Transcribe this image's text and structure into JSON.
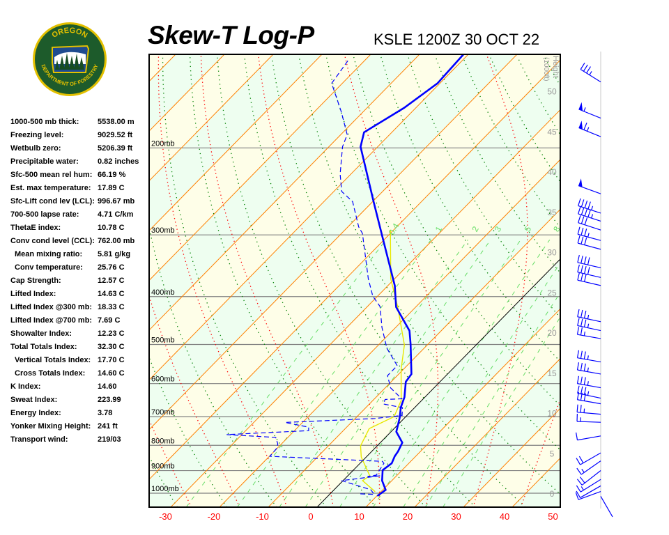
{
  "header": {
    "title": "Skew-T Log-P",
    "station": "KSLE 1200Z 30 OCT 22"
  },
  "logo": {
    "text_top": "OREGON",
    "text_bottom": "DEPARTMENT OF FORESTRY",
    "ring_color": "#e3c000",
    "field_color": "#1d5b2b"
  },
  "stats": [
    {
      "label": "1000-500 mb thick:",
      "value": "5538.00 m"
    },
    {
      "label": "Freezing level:",
      "value": "9029.52 ft"
    },
    {
      "label": "Wetbulb zero:",
      "value": "5206.39 ft"
    },
    {
      "label": "Precipitable water:",
      "value": "0.82 inches"
    },
    {
      "label": "Sfc-500 mean rel hum:",
      "value": "66.19 %"
    },
    {
      "label": "Est. max temperature:",
      "value": "17.89 C"
    },
    {
      "label": "Sfc-Lift cond lev (LCL):",
      "value": "996.67 mb"
    },
    {
      "label": "700-500 lapse rate:",
      "value": "4.71 C/km"
    },
    {
      "label": "ThetaE index:",
      "value": "10.78 C"
    },
    {
      "label": "Conv cond level (CCL):",
      "value": "762.00 mb"
    },
    {
      "label": "Mean mixing ratio:",
      "value": "5.81 g/kg",
      "indent": true
    },
    {
      "label": "Conv temperature:",
      "value": "25.76 C",
      "indent": true
    },
    {
      "label": "Cap Strength:",
      "value": "12.57 C"
    },
    {
      "label": "Lifted Index:",
      "value": "14.63 C"
    },
    {
      "label": "Lifted Index @300 mb:",
      "value": "18.33 C"
    },
    {
      "label": "Lifted Index @700 mb:",
      "value": "7.69 C"
    },
    {
      "label": "Showalter Index:",
      "value": "12.23 C"
    },
    {
      "label": "Total Totals Index:",
      "value": "32.30 C"
    },
    {
      "label": "Vertical Totals Index:",
      "value": "17.70 C",
      "indent": true
    },
    {
      "label": "Cross Totals Index:",
      "value": "14.60 C",
      "indent": true
    },
    {
      "label": "K Index:",
      "value": "14.60"
    },
    {
      "label": "Sweat Index:",
      "value": "223.99"
    },
    {
      "label": "Energy Index:",
      "value": "3.78"
    },
    {
      "label": "Yonker Mixing Height:",
      "value": "241 ft"
    },
    {
      "label": "Transport wind:",
      "value": "219/03"
    }
  ],
  "diagram": {
    "pressure_range_mb": [
      1067,
      129
    ],
    "isobars": [
      {
        "p": 1000,
        "label": "1000mb"
      },
      {
        "p": 900,
        "label": "900mb"
      },
      {
        "p": 800,
        "label": "800mb"
      },
      {
        "p": 700,
        "label": "700mb"
      },
      {
        "p": 600,
        "label": "600mb"
      },
      {
        "p": 500,
        "label": "500mb"
      },
      {
        "p": 400,
        "label": "400mb"
      },
      {
        "p": 300,
        "label": "300mb"
      },
      {
        "p": 200,
        "label": "200mb"
      }
    ],
    "temp_ticks": [
      "-30",
      "-20",
      "-10",
      "0",
      "10",
      "20",
      "30",
      "40",
      "50"
    ],
    "temp_tick_values": [
      -30,
      -20,
      -10,
      0,
      10,
      20,
      30,
      40,
      50
    ],
    "height_axis": {
      "title": "Height",
      "units": "(1000ft)",
      "ticks": [
        "0",
        "5",
        "10",
        "15",
        "20",
        "25",
        "30",
        "35",
        "40",
        "45",
        "50"
      ],
      "tick_values": [
        0,
        5,
        10,
        15,
        20,
        25,
        30,
        35,
        40,
        45,
        50
      ]
    },
    "mixing_ratio_labels": [
      "0.4",
      "1",
      "2",
      "3",
      "5",
      "8"
    ],
    "mixing_ratio_values": [
      0.4,
      1,
      2,
      3,
      5,
      8,
      12,
      16,
      20
    ],
    "colors": {
      "temperature": "#0000ff",
      "dewpoint": "#0000ff",
      "wetbulb": "#e8e800",
      "isotherm": "#ff8000",
      "zero_isotherm": "#000000",
      "dry_adiabat": "#008000",
      "moist_adiabat": "#ff0000",
      "mixing_ratio": "#66dd66",
      "isobar": "#808080",
      "band_a": "#eefef0",
      "band_b": "#fefee8",
      "temp_ticks": "#ff0000",
      "height_ticks": "#999999"
    },
    "temperature_profile": [
      [
        1013,
        10.1
      ],
      [
        985,
        10.6
      ],
      [
        943,
        8.0
      ],
      [
        898,
        6.0
      ],
      [
        870,
        6.5
      ],
      [
        842,
        5.7
      ],
      [
        823,
        5.4
      ],
      [
        790,
        4.5
      ],
      [
        751,
        1.1
      ],
      [
        704,
        -1.0
      ],
      [
        670,
        -2.9
      ],
      [
        639,
        -4.2
      ],
      [
        595,
        -7.0
      ],
      [
        574,
        -7.4
      ],
      [
        499,
        -13.6
      ],
      [
        469,
        -16.5
      ],
      [
        420,
        -24.0
      ],
      [
        380,
        -28.6
      ],
      [
        308,
        -40.0
      ],
      [
        257,
        -49.8
      ],
      [
        199,
        -63.5
      ],
      [
        186,
        -65.7
      ],
      [
        166,
        -62.4
      ],
      [
        148,
        -60.5
      ],
      [
        129,
        -61.0
      ]
    ],
    "dewpoint_profile": [
      [
        1003,
        6.2
      ],
      [
        1006,
        9.2
      ],
      [
        984,
        7.5
      ],
      [
        943,
        -0.3
      ],
      [
        922,
        6.6
      ],
      [
        925,
        4.2
      ],
      [
        919,
        5.7
      ],
      [
        870,
        4.9
      ],
      [
        862,
        4.2
      ],
      [
        842,
        -19.9
      ],
      [
        810,
        -20.1
      ],
      [
        794,
        -20.8
      ],
      [
        771,
        -22.5
      ],
      [
        761,
        -33.1
      ],
      [
        747,
        -17.1
      ],
      [
        735,
        -17.8
      ],
      [
        719,
        -23.6
      ],
      [
        706,
        -6.0
      ],
      [
        696,
        -1.0
      ],
      [
        671,
        -2.5
      ],
      [
        660,
        -7.1
      ],
      [
        646,
        -7.7
      ],
      [
        644,
        -4.4
      ],
      [
        612,
        -8.9
      ],
      [
        578,
        -12.0
      ],
      [
        552,
        -12.0
      ],
      [
        509,
        -17.6
      ],
      [
        462,
        -22.8
      ],
      [
        419,
        -27.4
      ],
      [
        399,
        -31.0
      ],
      [
        368,
        -35.4
      ],
      [
        298,
        -45.7
      ],
      [
        289,
        -47.8
      ],
      [
        257,
        -54.1
      ],
      [
        245,
        -58.4
      ],
      [
        226,
        -62.2
      ],
      [
        199,
        -67.2
      ],
      [
        188,
        -68.7
      ],
      [
        169,
        -74.5
      ],
      [
        148,
        -82.2
      ],
      [
        139,
        -82.9
      ],
      [
        132,
        -83.5
      ]
    ],
    "wetbulb_profile": [
      [
        993,
        8.8
      ],
      [
        943,
        4.0
      ],
      [
        922,
        4.5
      ],
      [
        845,
        -1.0
      ],
      [
        802,
        -3.4
      ],
      [
        740,
        -5.1
      ],
      [
        700,
        -2.4
      ],
      [
        649,
        -4.2
      ],
      [
        561,
        -10.5
      ],
      [
        501,
        -14.7
      ],
      [
        419,
        -23.8
      ],
      [
        368,
        -30.8
      ],
      [
        293,
        -40.7
      ]
    ],
    "wind_barbs": [
      {
        "h": 51.2,
        "dir": 302,
        "kt": 35
      },
      {
        "h": 46.7,
        "dir": 292,
        "kt": 55
      },
      {
        "h": 44.4,
        "dir": 292,
        "kt": 65
      },
      {
        "h": 37.3,
        "dir": 290,
        "kt": 50
      },
      {
        "h": 34.9,
        "dir": 288,
        "kt": 45
      },
      {
        "h": 33.9,
        "dir": 288,
        "kt": 45
      },
      {
        "h": 32.8,
        "dir": 288,
        "kt": 30
      },
      {
        "h": 31.5,
        "dir": 285,
        "kt": 35
      },
      {
        "h": 30.4,
        "dir": 285,
        "kt": 30
      },
      {
        "h": 28.1,
        "dir": 283,
        "kt": 40
      },
      {
        "h": 26.9,
        "dir": 283,
        "kt": 40
      },
      {
        "h": 25.9,
        "dir": 283,
        "kt": 30
      },
      {
        "h": 21.4,
        "dir": 282,
        "kt": 35
      },
      {
        "h": 20.3,
        "dir": 282,
        "kt": 35
      },
      {
        "h": 19.3,
        "dir": 280,
        "kt": 25
      },
      {
        "h": 16.4,
        "dir": 280,
        "kt": 35
      },
      {
        "h": 14.9,
        "dir": 280,
        "kt": 35
      },
      {
        "h": 13.2,
        "dir": 280,
        "kt": 35
      },
      {
        "h": 11.9,
        "dir": 282,
        "kt": 35
      },
      {
        "h": 11.2,
        "dir": 280,
        "kt": 30
      },
      {
        "h": 9.9,
        "dir": 275,
        "kt": 25
      },
      {
        "h": 8.9,
        "dir": 272,
        "kt": 15
      },
      {
        "h": 7.2,
        "dir": 260,
        "kt": 10
      },
      {
        "h": 5.1,
        "dir": 240,
        "kt": 20
      },
      {
        "h": 4.1,
        "dir": 235,
        "kt": 15
      },
      {
        "h": 2.9,
        "dir": 232,
        "kt": 20
      },
      {
        "h": 1.8,
        "dir": 238,
        "kt": 15
      },
      {
        "h": 1.0,
        "dir": 240,
        "kt": 10
      },
      {
        "h": 0.3,
        "dir": 250,
        "kt": 10
      },
      {
        "h": -0.3,
        "dir": 150,
        "kt": 0
      }
    ]
  }
}
